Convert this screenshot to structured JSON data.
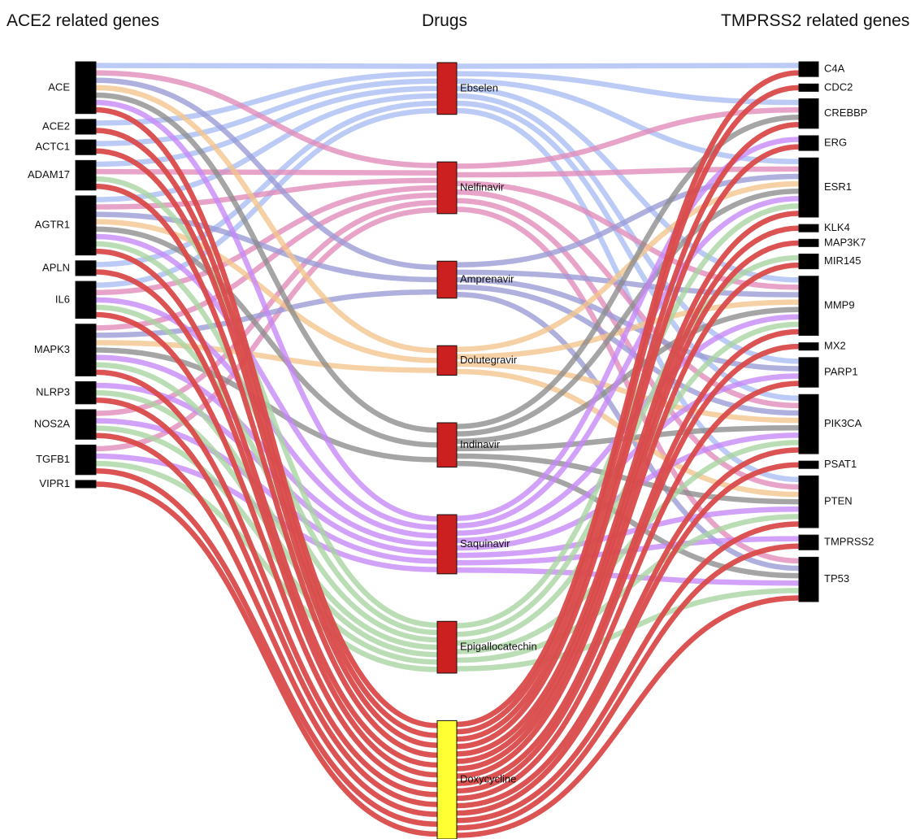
{
  "titles": {
    "left": "ACE2 related genes",
    "middle": "Drugs",
    "right": "TMPRSS2 related genes"
  },
  "colors": {
    "gene_node": "#000000",
    "drug_node": "#cc1f1f",
    "highlight_drug_node": "#ffff33",
    "link_by_drug": {
      "Ebselen": "#a9bdf3",
      "Nelfinavir": "#e28ab8",
      "Amprenavir": "#9a9ad6",
      "Dolutegravir": "#f2c48c",
      "Indinavir": "#8c8c8c",
      "Saquinavir": "#c586f7",
      "Epigallocatechin": "#a8d4a0",
      "Doxycycline": "#d94a4a"
    }
  },
  "ace2_genes": [
    "ACE",
    "ACE2",
    "ACTC1",
    "ADAM17",
    "AGTR1",
    "APLN",
    "IL6",
    "MAPK3",
    "NLRP3",
    "NOS2A",
    "TGFB1",
    "VIPR1"
  ],
  "drugs": [
    "Ebselen",
    "Nelfinavir",
    "Amprenavir",
    "Dolutegravir",
    "Indinavir",
    "Saquinavir",
    "Epigallocatechin",
    "Doxycycline"
  ],
  "highlight_drug": "Doxycycline",
  "tmprss2_genes": [
    "C4A",
    "CDC2",
    "CREBBP",
    "ERG",
    "ESR1",
    "KLK4",
    "MAP3K7",
    "MIR145",
    "MMP9",
    "MX2",
    "PARP1",
    "PIK3CA",
    "PSAT1",
    "PTEN",
    "TMPRSS2",
    "TP53"
  ],
  "links_ace2_to_drug": {
    "Ebselen": [
      "ACE",
      "ACE2",
      "ACTC1",
      "ADAM17",
      "AGTR1",
      "APLN",
      "IL6"
    ],
    "Nelfinavir": [
      "ACE",
      "ADAM17",
      "AGTR1",
      "IL6",
      "MAPK3",
      "NOS2A",
      "TGFB1"
    ],
    "Amprenavir": [
      "ACE",
      "AGTR1",
      "MAPK3"
    ],
    "Dolutegravir": [
      "ACE",
      "AGTR1",
      "MAPK3"
    ],
    "Indinavir": [
      "ACE",
      "AGTR1",
      "MAPK3"
    ],
    "Saquinavir": [
      "ACE",
      "AGTR1",
      "IL6",
      "MAPK3",
      "NLRP3",
      "NOS2A",
      "TGFB1"
    ],
    "Epigallocatechin": [
      "ADAM17",
      "AGTR1",
      "IL6",
      "MAPK3",
      "NLRP3",
      "NOS2A",
      "TGFB1"
    ],
    "Doxycycline": [
      "ACE",
      "ACE2",
      "ACTC1",
      "ADAM17",
      "AGTR1",
      "APLN",
      "IL6",
      "MAPK3",
      "NLRP3",
      "NOS2A",
      "TGFB1",
      "VIPR1"
    ]
  },
  "links_drug_to_tmprss2": {
    "Ebselen": [
      "C4A",
      "CREBBP",
      "ESR1",
      "MMP9",
      "PARP1",
      "PIK3CA",
      "PTEN"
    ],
    "Nelfinavir": [
      "CREBBP",
      "ESR1",
      "MMP9",
      "PIK3CA",
      "PTEN",
      "TP53"
    ],
    "Amprenavir": [
      "ESR1",
      "MMP9",
      "PARP1",
      "PIK3CA",
      "TP53"
    ],
    "Dolutegravir": [
      "ESR1",
      "MMP9",
      "PIK3CA",
      "PTEN"
    ],
    "Indinavir": [
      "CREBBP",
      "ESR1",
      "MMP9",
      "PIK3CA",
      "PTEN",
      "TP53"
    ],
    "Saquinavir": [
      "ERG",
      "ESR1",
      "MMP9",
      "PARP1",
      "PIK3CA",
      "PTEN",
      "TMPRSS2",
      "TP53"
    ],
    "Epigallocatechin": [
      "ESR1",
      "MIR145",
      "MMP9",
      "PIK3CA",
      "PTEN",
      "TP53"
    ],
    "Doxycycline": [
      "C4A",
      "CDC2",
      "CREBBP",
      "ERG",
      "ESR1",
      "KLK4",
      "MAP3K7",
      "MIR145",
      "MMP9",
      "MX2",
      "PARP1",
      "PIK3CA",
      "PSAT1",
      "PTEN",
      "TMPRSS2",
      "TP53"
    ]
  }
}
